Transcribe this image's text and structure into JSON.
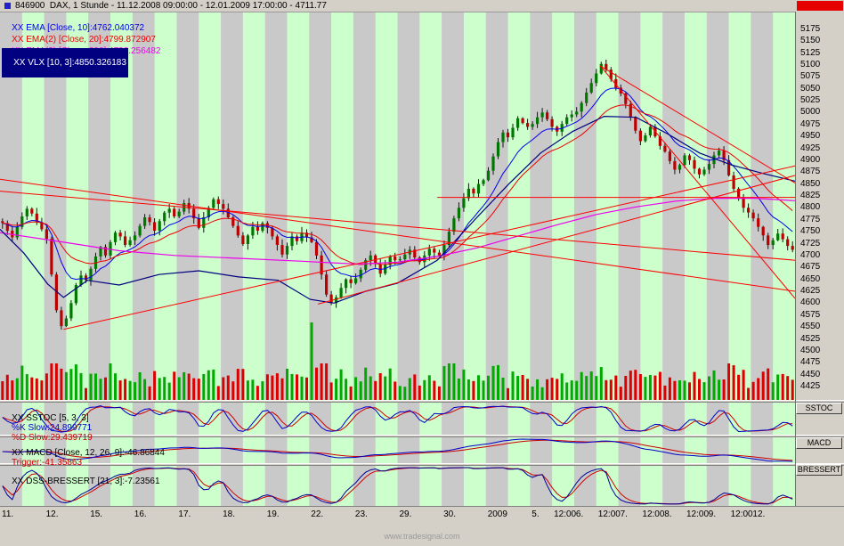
{
  "window": {
    "title": "846900  DAX, 1 Stunde - 11.12.2008 09:00:00 - 12.01.2009 17:00:00 - 4711.77"
  },
  "legend": [
    {
      "label": "XX EMA [Close, 10]:4762.040372",
      "color": "#0000ee"
    },
    {
      "label": "XX EMA(2) [Close, 20]:4799.872907",
      "color": "#ee0000"
    },
    {
      "label": "XX EMA(3) [Close, 200]:4796.256482",
      "color": "#ee00ee"
    },
    {
      "label": "XX VLX [10, 3]:4850.326183",
      "color": "#ffffff",
      "bg": "#000080"
    }
  ],
  "panels": {
    "sstoc": {
      "prefix": "XX SSTOC [5, 3, 3]",
      "k_label": "%K Slow:24.899771",
      "d_label": "%D Slow:29.439719",
      "button": "SSTOC"
    },
    "macd": {
      "label": "XX MACD [Close, 12, 26, 9]:-46.86844",
      "trigger_label": "Trigger:-41.35863",
      "button": "MACD"
    },
    "dss": {
      "label": "XX DSS-BRESSERT [21, 3]:-7.23561",
      "button": "BRESSERT"
    }
  },
  "watermark": "www.tradesignal.com",
  "colors": {
    "up": "#007700",
    "down": "#bb0000",
    "wick": "#151515",
    "vol_up": "#00aa00",
    "vol_down": "#dd0000",
    "ema10": "#0000ee",
    "ema20": "#ee0000",
    "ema200": "#ee00ee",
    "vlx": "#000080",
    "trend": "#ff0000",
    "stripe_green": "#ccffcc",
    "stripe_gray": "#c9c9c9",
    "sstoc_k": "#0000cc",
    "sstoc_d": "#cc0000",
    "macd_line": "#0000cc",
    "macd_trigger": "#cc0000",
    "dss_line": "#000099",
    "dss_trigger": "#cc0000",
    "bg": "#d4d0c8",
    "red_box": "#e60000",
    "watermark": "#9a9a9a"
  },
  "chart_data": {
    "type": "candlestick",
    "symbol": "846900 DAX",
    "timeframe": "1 Stunde",
    "period_shown": "11.12.2008 09:00:00 - 12.01.2009 17:00:00",
    "last_price": 4711.77,
    "ylim": [
      4395,
      5210
    ],
    "price_axis": {
      "min": 4425,
      "max": 5175,
      "step": 25
    },
    "day_labels": [
      "11.",
      "12.",
      "15.",
      "16.",
      "17.",
      "18.",
      "19.",
      "22.",
      "23.",
      "29.",
      "30.",
      "2009",
      "5.",
      "6.",
      "7.",
      "8.",
      "9.",
      "12."
    ],
    "noon_label_days": [
      12,
      13,
      14,
      15,
      16
    ],
    "noon_label": "12:00",
    "first_open": 4772,
    "hourly_closes": [
      4768,
      4752,
      4738,
      4760,
      4782,
      4798,
      4788,
      4770,
      4755,
      4735,
      4660,
      4585,
      4552,
      4568,
      4600,
      4638,
      4658,
      4648,
      4672,
      4698,
      4718,
      4700,
      4728,
      4748,
      4740,
      4722,
      4732,
      4742,
      4762,
      4780,
      4770,
      4752,
      4772,
      4790,
      4798,
      4782,
      4792,
      4810,
      4798,
      4778,
      4758,
      4780,
      4800,
      4818,
      4808,
      4798,
      4780,
      4762,
      4742,
      4724,
      4742,
      4760,
      4752,
      4768,
      4758,
      4740,
      4722,
      4702,
      4720,
      4740,
      4730,
      4748,
      4738,
      4728,
      4700,
      4660,
      4618,
      4600,
      4612,
      4632,
      4650,
      4642,
      4652,
      4670,
      4690,
      4700,
      4682,
      4662,
      4680,
      4698,
      4690,
      4692,
      4702,
      4712,
      4696,
      4686,
      4700,
      4714,
      4706,
      4700,
      4722,
      4750,
      4778,
      4800,
      4820,
      4840,
      4830,
      4850,
      4858,
      4878,
      4908,
      4938,
      4958,
      4948,
      4968,
      4988,
      4978,
      4970,
      4976,
      4990,
      5000,
      4986,
      4970,
      4960,
      4976,
      4990,
      4996,
      5002,
      5020,
      5042,
      5062,
      5082,
      5102,
      5090,
      5070,
      5052,
      5040,
      5018,
      4990,
      4962,
      4940,
      4952,
      4970,
      4950,
      4930,
      4918,
      4898,
      4880,
      4890,
      4910,
      4900,
      4882,
      4870,
      4880,
      4892,
      4910,
      4920,
      4900,
      4868,
      4840,
      4820,
      4800,
      4790,
      4778,
      4760,
      4742,
      4722,
      4732,
      4746,
      4734,
      4720,
      4712
    ],
    "overlays": [
      {
        "name": "EMA",
        "period": 10,
        "value": 4762.040372
      },
      {
        "name": "EMA(2)",
        "period": 20,
        "value": 4799.872907
      },
      {
        "name": "EMA(3)",
        "period": 200,
        "value": 4796.256482
      },
      {
        "name": "VLX",
        "params": "10, 3",
        "value": 4850.326183
      }
    ],
    "ema200_path": [
      [
        0,
        4748
      ],
      [
        0.08,
        4728
      ],
      [
        0.15,
        4710
      ],
      [
        0.22,
        4700
      ],
      [
        0.3,
        4694
      ],
      [
        0.38,
        4688
      ],
      [
        0.45,
        4682
      ],
      [
        0.5,
        4686
      ],
      [
        0.55,
        4698
      ],
      [
        0.6,
        4716
      ],
      [
        0.65,
        4740
      ],
      [
        0.7,
        4764
      ],
      [
        0.75,
        4786
      ],
      [
        0.8,
        4802
      ],
      [
        0.85,
        4814
      ],
      [
        0.9,
        4820
      ],
      [
        0.95,
        4820
      ],
      [
        1,
        4815
      ]
    ],
    "vlx_path": [
      [
        0,
        4755
      ],
      [
        0.03,
        4705
      ],
      [
        0.06,
        4640
      ],
      [
        0.08,
        4612
      ],
      [
        0.11,
        4648
      ],
      [
        0.15,
        4638
      ],
      [
        0.2,
        4660
      ],
      [
        0.25,
        4668
      ],
      [
        0.3,
        4655
      ],
      [
        0.35,
        4648
      ],
      [
        0.39,
        4608
      ],
      [
        0.42,
        4600
      ],
      [
        0.46,
        4625
      ],
      [
        0.5,
        4642
      ],
      [
        0.55,
        4690
      ],
      [
        0.6,
        4780
      ],
      [
        0.64,
        4850
      ],
      [
        0.68,
        4915
      ],
      [
        0.72,
        4960
      ],
      [
        0.76,
        4992
      ],
      [
        0.8,
        4990
      ],
      [
        0.84,
        4955
      ],
      [
        0.88,
        4915
      ],
      [
        0.92,
        4890
      ],
      [
        0.96,
        4872
      ],
      [
        1,
        4856
      ]
    ],
    "trend_lines": [
      [
        0,
        4860,
        1,
        4625
      ],
      [
        0,
        4835,
        1,
        4690
      ],
      [
        0.08,
        4545,
        1,
        4888
      ],
      [
        0.4,
        4598,
        1,
        4868
      ],
      [
        0.755,
        5098,
        1,
        4852
      ],
      [
        0.755,
        5098,
        1,
        4610
      ],
      [
        0.55,
        4822,
        1,
        4822
      ]
    ],
    "volume_spike": {
      "index": 63,
      "height": 88
    },
    "stripes": {
      "count": 36
    },
    "sub_indicators": [
      {
        "name": "SSTOC",
        "params": [
          5,
          3,
          3
        ],
        "k_slow": 24.899771,
        "d_slow": 29.439719
      },
      {
        "name": "MACD",
        "params": [
          12,
          26,
          9
        ],
        "value": -46.86844,
        "trigger": -41.35863
      },
      {
        "name": "DSS-BRESSERT",
        "params": [
          21,
          3
        ],
        "value": -7.23561
      }
    ]
  }
}
